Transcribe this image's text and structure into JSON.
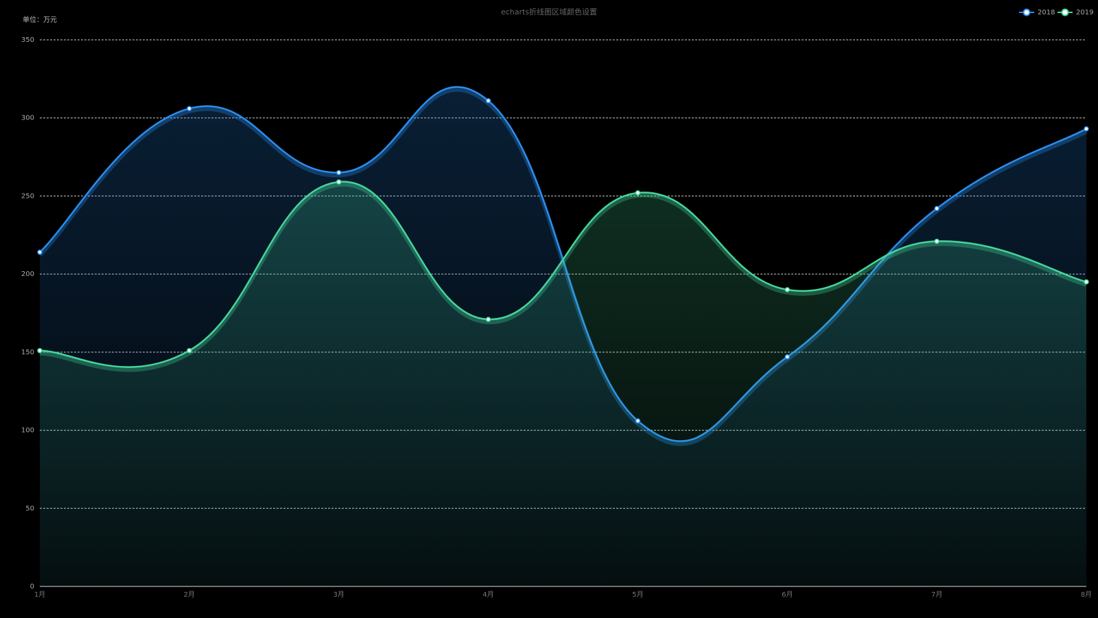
{
  "chart_data": {
    "type": "line",
    "title": "echarts折线图区域颜色设置",
    "y_axis_name": "单位：万元",
    "categories": [
      "1月",
      "2月",
      "3月",
      "4月",
      "5月",
      "6月",
      "7月",
      "8月"
    ],
    "series": [
      {
        "name": "2018",
        "color": "#2a8ef0",
        "values": [
          214,
          306,
          265,
          311,
          106,
          147,
          242,
          293
        ]
      },
      {
        "name": "2019",
        "color": "#45d69c",
        "values": [
          151,
          151,
          259,
          171,
          252,
          190,
          221,
          195
        ]
      }
    ],
    "ylim": [
      0,
      350
    ],
    "yticks": [
      0,
      50,
      100,
      150,
      200,
      250,
      300,
      350
    ],
    "grid": true,
    "legend": "top-right"
  }
}
